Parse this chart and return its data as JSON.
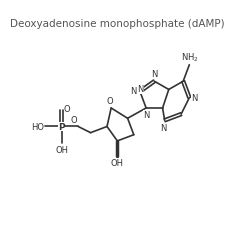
{
  "title": "Deoxyadenosine monophosphate (dAMP)",
  "title_fontsize": 7.5,
  "title_color": "#555555",
  "line_color": "#333333",
  "text_color": "#333333",
  "bg_color": "#ffffff",
  "lw": 1.2
}
